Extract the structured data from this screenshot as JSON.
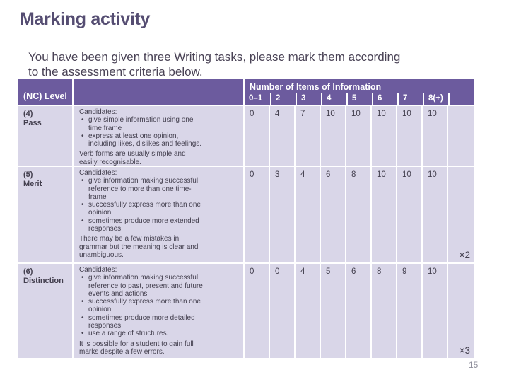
{
  "slide": {
    "title": "Marking activity",
    "subtitle_lines": [
      "You have been given three Writing tasks, please mark them according",
      "to the assessment criteria below."
    ],
    "page_number": "15"
  },
  "colors": {
    "header_purple": "#6c5b9e",
    "cell_lavender": "#d9d6e8",
    "title_color": "#554d72",
    "body_text": "#4a4356",
    "table_text": "#433f4e"
  },
  "table": {
    "header": {
      "level_label": "(NC) Level",
      "group_label": "Number of Items of Information",
      "item_columns": [
        "0–1",
        "2",
        "3",
        "4",
        "5",
        "6",
        "7",
        "8(+)"
      ]
    },
    "rows": [
      {
        "level_code": "(4)",
        "level_name": "Pass",
        "intro": "Candidates:",
        "bullets": [
          "give simple information using one time frame",
          "express at least one opinion, including likes, dislikes and feelings."
        ],
        "note": "Verb forms are usually simple and easily recognisable.",
        "scores": [
          "0",
          "4",
          "7",
          "10",
          "10",
          "10",
          "10",
          "10"
        ],
        "multiplier": ""
      },
      {
        "level_code": "(5)",
        "level_name": "Merit",
        "intro": "Candidates:",
        "bullets": [
          "give information making successful reference to more than one time-frame",
          "successfully express more than one opinion",
          "sometimes produce more extended responses."
        ],
        "note": "There may be a few mistakes in grammar but the meaning is clear and unambiguous.",
        "scores": [
          "0",
          "3",
          "4",
          "6",
          "8",
          "10",
          "10",
          "10"
        ],
        "multiplier": "×2"
      },
      {
        "level_code": "(6)",
        "level_name": "Distinction",
        "intro": "Candidates:",
        "bullets": [
          "give information making successful reference to past, present and future events and actions",
          "successfully express more than one opinion",
          "sometimes produce more detailed responses",
          "use a range of structures."
        ],
        "note": "It is possible for a student to gain full marks despite a few errors.",
        "scores": [
          "0",
          "0",
          "4",
          "5",
          "6",
          "8",
          "9",
          "10"
        ],
        "multiplier": "×3"
      }
    ]
  }
}
